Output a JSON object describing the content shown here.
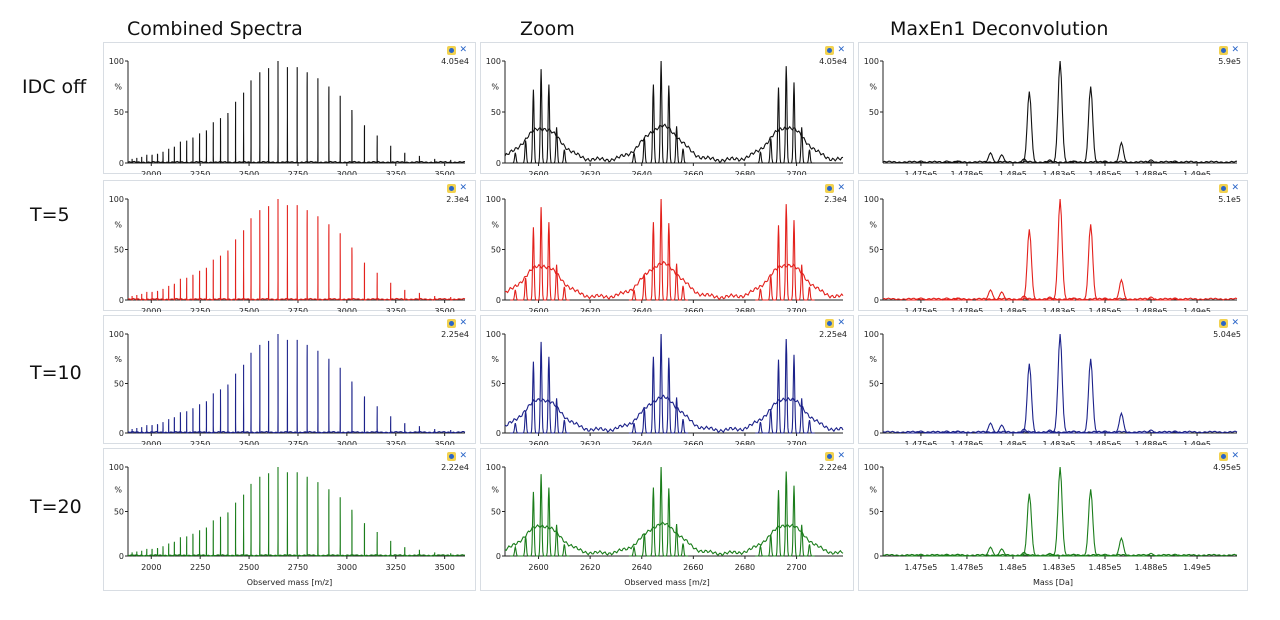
{
  "column_titles": [
    "Combined Spectra",
    "Zoom",
    "MaxEn1 Deconvolution"
  ],
  "rows": [
    {
      "label": "IDC off",
      "color": "#111111",
      "intensity": [
        "4.05e4",
        "4.05e4",
        "5.9e5"
      ]
    },
    {
      "label": "T=5",
      "color": "#e3211c",
      "intensity": [
        "2.3e4",
        "2.3e4",
        "5.1e5"
      ]
    },
    {
      "label": "T=10",
      "color": "#1c228a",
      "intensity": [
        "2.25e4",
        "2.25e4",
        "5.04e5"
      ]
    },
    {
      "label": "T=20",
      "color": "#1b7d1b",
      "intensity": [
        "2.22e4",
        "2.22e4",
        "4.95e5"
      ]
    }
  ],
  "chart_data": [
    {
      "type": "line",
      "title": "Combined Spectra",
      "xlabel": "Observed mass [m/z]",
      "ylabel": "%",
      "xlim": [
        1881,
        3604
      ],
      "ylim": [
        0,
        100
      ],
      "xticks": [
        2000,
        2250,
        2500,
        2750,
        3000,
        3250,
        3500
      ],
      "yticks": [
        0,
        50,
        100
      ],
      "peaks": [
        [
          1902,
          4
        ],
        [
          1926,
          5
        ],
        [
          1951,
          6
        ],
        [
          1977,
          8
        ],
        [
          2004,
          8
        ],
        [
          2032,
          9
        ],
        [
          2060,
          11
        ],
        [
          2089,
          14
        ],
        [
          2118,
          16
        ],
        [
          2149,
          21
        ],
        [
          2181,
          22
        ],
        [
          2213,
          25
        ],
        [
          2247,
          29
        ],
        [
          2282,
          32
        ],
        [
          2317,
          40
        ],
        [
          2354,
          44
        ],
        [
          2392,
          49
        ],
        [
          2431,
          60
        ],
        [
          2472,
          69
        ],
        [
          2510,
          81
        ],
        [
          2555,
          89
        ],
        [
          2600,
          93
        ],
        [
          2648,
          100
        ],
        [
          2696,
          94
        ],
        [
          2746,
          94
        ],
        [
          2797,
          89
        ],
        [
          2852,
          83
        ],
        [
          2908,
          75
        ],
        [
          2966,
          66
        ],
        [
          3026,
          52
        ],
        [
          3090,
          37
        ],
        [
          3155,
          27
        ],
        [
          3224,
          17
        ],
        [
          3296,
          10
        ],
        [
          3371,
          7
        ],
        [
          3449,
          4
        ],
        [
          3531,
          3
        ]
      ]
    },
    {
      "type": "line",
      "title": "Zoom",
      "xlabel": "Observed mass [m/z]",
      "ylabel": "%",
      "xlim": [
        2587,
        2718
      ],
      "ylim": [
        0,
        100
      ],
      "xticks": [
        2600,
        2620,
        2640,
        2660,
        2680,
        2700
      ],
      "yticks": [
        0,
        50,
        100
      ],
      "peaks": [
        [
          2591,
          10
        ],
        [
          2595,
          22
        ],
        [
          2598,
          72
        ],
        [
          2601,
          92
        ],
        [
          2604,
          77
        ],
        [
          2607,
          35
        ],
        [
          2610,
          13
        ],
        [
          2637,
          10
        ],
        [
          2641,
          25
        ],
        [
          2644.5,
          77
        ],
        [
          2647.5,
          100
        ],
        [
          2650.5,
          76
        ],
        [
          2653.5,
          36
        ],
        [
          2656,
          14
        ],
        [
          2686,
          11
        ],
        [
          2690,
          24
        ],
        [
          2693,
          74
        ],
        [
          2696,
          95
        ],
        [
          2699,
          79
        ],
        [
          2702,
          35
        ],
        [
          2705,
          13
        ]
      ]
    },
    {
      "type": "line",
      "title": "MaxEn1 Deconvolution",
      "xlabel": "Mass [Da]",
      "ylabel": "%",
      "xlim": [
        147294,
        149217
      ],
      "ylim": [
        0,
        100
      ],
      "xticks": [
        147500,
        147750,
        148000,
        148250,
        148500,
        148750,
        149000
      ],
      "xtick_labels": [
        "1.475e5",
        "1.478e5",
        "1.48e5",
        "1.483e5",
        "1.485e5",
        "1.488e5",
        "1.49e5"
      ],
      "yticks": [
        0,
        50,
        100
      ],
      "peaks": [
        [
          147500,
          2
        ],
        [
          147640,
          2
        ],
        [
          147700,
          2
        ],
        [
          147878,
          10
        ],
        [
          147939,
          8
        ],
        [
          148060,
          4
        ],
        [
          148089,
          70
        ],
        [
          148200,
          3
        ],
        [
          148256,
          100
        ],
        [
          148330,
          2
        ],
        [
          148422,
          75
        ],
        [
          148500,
          2
        ],
        [
          148589,
          20
        ],
        [
          148750,
          3
        ],
        [
          148880,
          2
        ]
      ]
    }
  ]
}
